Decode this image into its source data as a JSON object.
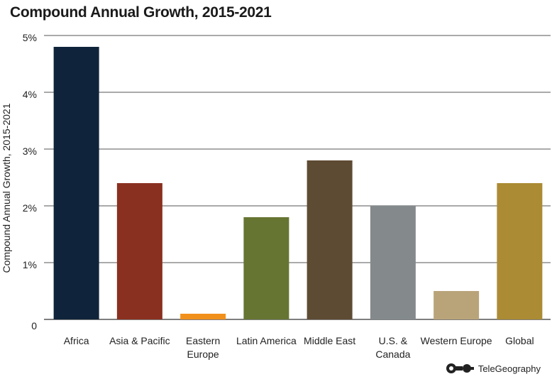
{
  "chart_data": {
    "type": "bar",
    "title": "Compound Annual Growth, 2015-2021",
    "ylabel": "Compound Annual Growth, 2015-2021",
    "xlabel": "",
    "ylim": [
      0,
      5
    ],
    "yticks": [
      {
        "value": 0,
        "label": "0"
      },
      {
        "value": 1,
        "label": "1%"
      },
      {
        "value": 2,
        "label": "2%"
      },
      {
        "value": 3,
        "label": "3%"
      },
      {
        "value": 4,
        "label": "4%"
      },
      {
        "value": 5,
        "label": "5%"
      }
    ],
    "grid": true,
    "categories": [
      [
        "Africa"
      ],
      [
        "Asia & Pacific"
      ],
      [
        "Eastern",
        "Europe"
      ],
      [
        "Latin America"
      ],
      [
        "Middle East"
      ],
      [
        "U.S. &",
        "Canada"
      ],
      [
        "Western Europe"
      ],
      [
        "Global"
      ]
    ],
    "values": [
      4.8,
      2.4,
      0.1,
      1.8,
      2.8,
      2.0,
      0.5,
      2.4
    ],
    "colors": [
      "#0f243a",
      "#8a3020",
      "#f2901c",
      "#667532",
      "#5e4b33",
      "#848a8c",
      "#b9a47a",
      "#ab8b33"
    ]
  },
  "source": {
    "name": "TeleGeography"
  }
}
